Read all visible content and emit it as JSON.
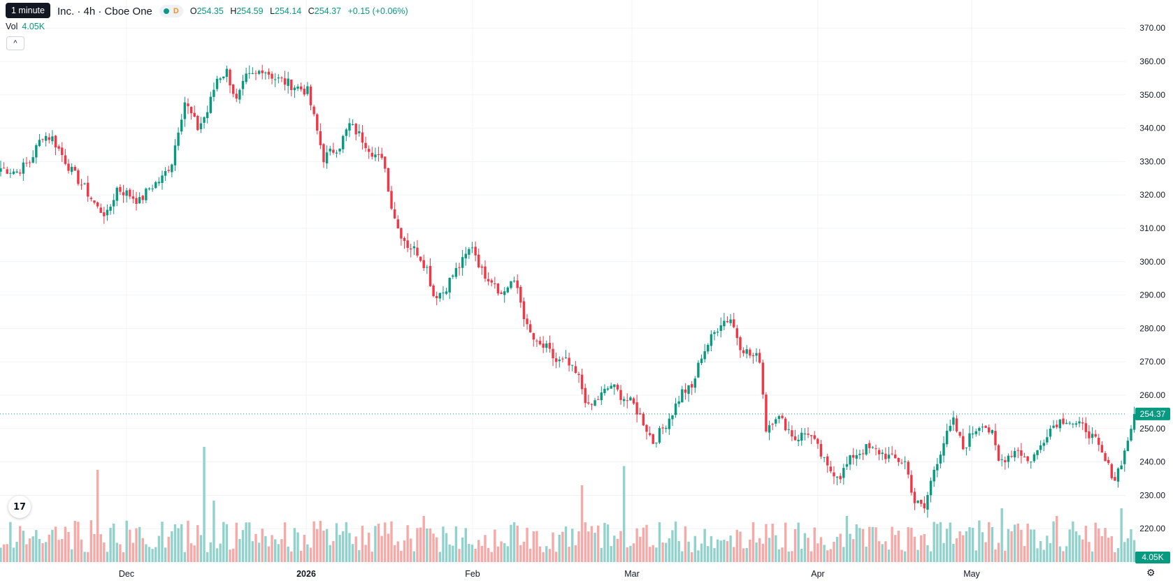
{
  "legend": {
    "title": "Inc. · 4h · Cboe One",
    "d_badge": "D",
    "o_label": "O",
    "o_value": "254.35",
    "h_label": "H",
    "h_value": "254.59",
    "l_label": "L",
    "l_value": "254.14",
    "c_label": "C",
    "c_value": "254.37",
    "change": "+0.15 (+0.06%)",
    "vol_label": "Vol",
    "vol_value": "4.05K",
    "tooltip": "1 minute",
    "collapse_icon": "^",
    "logo_text": "17"
  },
  "colors": {
    "up": "#089981",
    "down": "#f23645",
    "up_vol": "#92d2cc",
    "down_vol": "#f7a9a7",
    "grid": "#f0f3fa"
  },
  "icons": {
    "logo": "tradingview-logo-icon",
    "settings": "gear-icon",
    "collapse": "chevron-up-icon"
  },
  "chart_data": {
    "type": "candlestick",
    "x_tick_labels": [
      "Dec",
      "2026",
      "Feb",
      "Mar",
      "Apr",
      "May"
    ],
    "y_tick_labels": [
      "370.00",
      "360.00",
      "350.00",
      "340.00",
      "330.00",
      "320.00",
      "310.00",
      "300.00",
      "290.00",
      "280.00",
      "270.00",
      "260.00",
      "250.00",
      "240.00",
      "230.00",
      "220.00"
    ],
    "ylim": [
      213,
      374
    ],
    "last_price": 254.37,
    "last_price_label": "254.37",
    "last_volume_label": "4.05K",
    "grid": true,
    "price_anchors": [
      [
        0,
        328
      ],
      [
        5,
        327
      ],
      [
        9,
        330
      ],
      [
        13,
        338
      ],
      [
        16,
        337
      ],
      [
        19,
        332
      ],
      [
        22,
        327
      ],
      [
        26,
        322
      ],
      [
        30,
        316
      ],
      [
        33,
        314
      ],
      [
        36,
        322
      ],
      [
        40,
        320
      ],
      [
        43,
        318
      ],
      [
        46,
        322
      ],
      [
        50,
        325
      ],
      [
        53,
        330
      ],
      [
        55,
        340
      ],
      [
        57,
        348
      ],
      [
        61,
        340
      ],
      [
        64,
        345
      ],
      [
        67,
        355
      ],
      [
        70,
        357
      ],
      [
        73,
        348
      ],
      [
        76,
        355
      ],
      [
        79,
        356
      ],
      [
        81,
        358
      ],
      [
        85,
        355
      ],
      [
        90,
        353
      ],
      [
        95,
        351
      ],
      [
        100,
        331
      ],
      [
        105,
        335
      ],
      [
        108,
        341
      ],
      [
        111,
        338
      ],
      [
        115,
        333
      ],
      [
        119,
        329
      ],
      [
        120,
        321
      ],
      [
        123,
        310
      ],
      [
        126,
        305
      ],
      [
        129,
        303
      ],
      [
        132,
        298
      ],
      [
        134,
        290
      ],
      [
        137,
        291
      ],
      [
        140,
        296
      ],
      [
        143,
        300
      ],
      [
        146,
        305
      ],
      [
        149,
        297
      ],
      [
        153,
        294
      ],
      [
        155,
        290
      ],
      [
        158,
        294
      ],
      [
        160,
        292
      ],
      [
        163,
        280
      ],
      [
        166,
        275
      ],
      [
        169,
        274
      ],
      [
        172,
        270
      ],
      [
        175,
        270
      ],
      [
        179,
        265
      ],
      [
        182,
        256
      ],
      [
        186,
        260
      ],
      [
        189,
        263
      ],
      [
        192,
        260
      ],
      [
        196,
        257
      ],
      [
        199,
        252
      ],
      [
        202,
        246
      ],
      [
        205,
        250
      ],
      [
        208,
        255
      ],
      [
        211,
        261
      ],
      [
        214,
        262
      ],
      [
        217,
        272
      ],
      [
        220,
        277
      ],
      [
        223,
        282
      ],
      [
        226,
        283
      ],
      [
        229,
        275
      ],
      [
        232,
        272
      ],
      [
        235,
        271
      ],
      [
        237,
        250
      ],
      [
        240,
        254
      ],
      [
        243,
        251
      ],
      [
        246,
        247
      ],
      [
        250,
        249
      ],
      [
        253,
        244
      ],
      [
        256,
        238
      ],
      [
        260,
        236
      ],
      [
        264,
        242
      ],
      [
        268,
        244
      ],
      [
        272,
        243
      ],
      [
        276,
        241
      ],
      [
        280,
        240
      ],
      [
        283,
        228
      ],
      [
        286,
        226
      ],
      [
        289,
        238
      ],
      [
        292,
        246
      ],
      [
        295,
        252
      ],
      [
        298,
        244
      ],
      [
        301,
        249
      ],
      [
        304,
        252
      ],
      [
        307,
        248
      ],
      [
        309,
        240
      ],
      [
        312,
        242
      ],
      [
        315,
        244
      ],
      [
        318,
        240
      ],
      [
        321,
        243
      ],
      [
        324,
        249
      ],
      [
        327,
        252
      ],
      [
        330,
        253
      ],
      [
        333,
        251
      ],
      [
        336,
        250
      ],
      [
        339,
        246
      ],
      [
        342,
        240
      ],
      [
        345,
        235
      ],
      [
        348,
        243
      ],
      [
        351,
        254.37
      ]
    ],
    "candle_count": 352,
    "volume_spikes": {
      "12": 60,
      "30": 240,
      "63": 300,
      "66": 160,
      "131": 120,
      "165": 80,
      "180": 200,
      "193": 250,
      "239": 100,
      "252": 90,
      "262": 120,
      "310": 140,
      "318": 100,
      "327": 120,
      "333": 80,
      "347": 140
    }
  }
}
